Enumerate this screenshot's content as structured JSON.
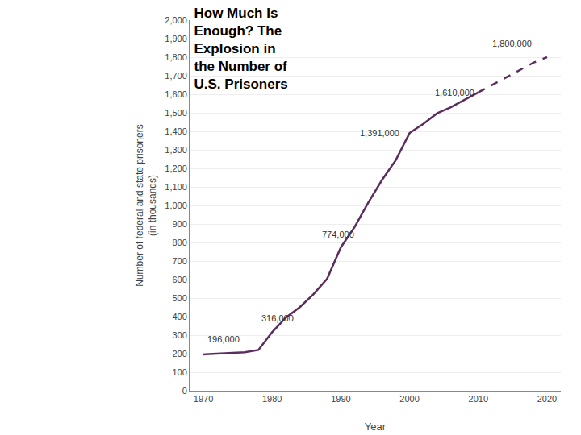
{
  "chart_data": {
    "type": "line",
    "title": "How Much Is\nEnough? The\nExplosion in\nthe Number of\nU.S. Prisoners",
    "xlabel": "Year",
    "ylabel": "Number of federal and state prisoners\n(in thousands)",
    "series": [
      {
        "x": [
          1970,
          1972,
          1974,
          1976,
          1978,
          1980,
          1982,
          1984,
          1986,
          1988,
          1990,
          1992,
          1994,
          1996,
          1998,
          2000,
          2002,
          2004,
          2006,
          2008,
          2010
        ],
        "values": [
          196,
          200,
          204,
          208,
          220,
          316,
          395,
          450,
          520,
          604,
          774,
          883,
          1016,
          1138,
          1245,
          1391,
          1440,
          1497,
          1530,
          1570,
          1610
        ],
        "color": "#5b2d5e",
        "line_style": "solid"
      },
      {
        "x": [
          2010,
          2012,
          2014,
          2016,
          2018,
          2020
        ],
        "values": [
          1610,
          1650,
          1690,
          1730,
          1770,
          1800
        ],
        "color": "#5b2d5e",
        "line_style": "dashed"
      }
    ],
    "xlim": [
      1968,
      2022
    ],
    "ylim": [
      0,
      2000
    ],
    "xticks": [
      1970,
      1980,
      1990,
      2000,
      2010,
      2020
    ],
    "yticks": [
      0,
      100,
      200,
      300,
      400,
      500,
      600,
      700,
      800,
      900,
      {
        "value": 1000,
        "label": "1,000"
      },
      {
        "value": 1100,
        "label": "1,100"
      },
      {
        "value": 1200,
        "label": "1,200"
      },
      {
        "value": 1300,
        "label": "1,300"
      },
      {
        "value": 1400,
        "label": "1,400"
      },
      {
        "value": 1500,
        "label": "1,500"
      },
      {
        "value": 1600,
        "label": "1,600"
      },
      {
        "value": 1700,
        "label": "1,700"
      },
      {
        "value": 1800,
        "label": "1,800"
      },
      {
        "value": 1900,
        "label": "1,900"
      },
      {
        "value": 2000,
        "label": "2,000"
      }
    ],
    "grid": true,
    "annotations": [
      {
        "text": "196,000",
        "x": 1970.3,
        "y": 245
      },
      {
        "text": "316,000",
        "x": 1978.2,
        "y": 355
      },
      {
        "text": "774,000",
        "x": 1987.0,
        "y": 810
      },
      {
        "text": "1,391,000",
        "x": 1992.5,
        "y": 1358
      },
      {
        "text": "1,610,000",
        "x": 2003.5,
        "y": 1572
      },
      {
        "text": "1,800,000",
        "x": 2011.8,
        "y": 1840
      }
    ]
  }
}
